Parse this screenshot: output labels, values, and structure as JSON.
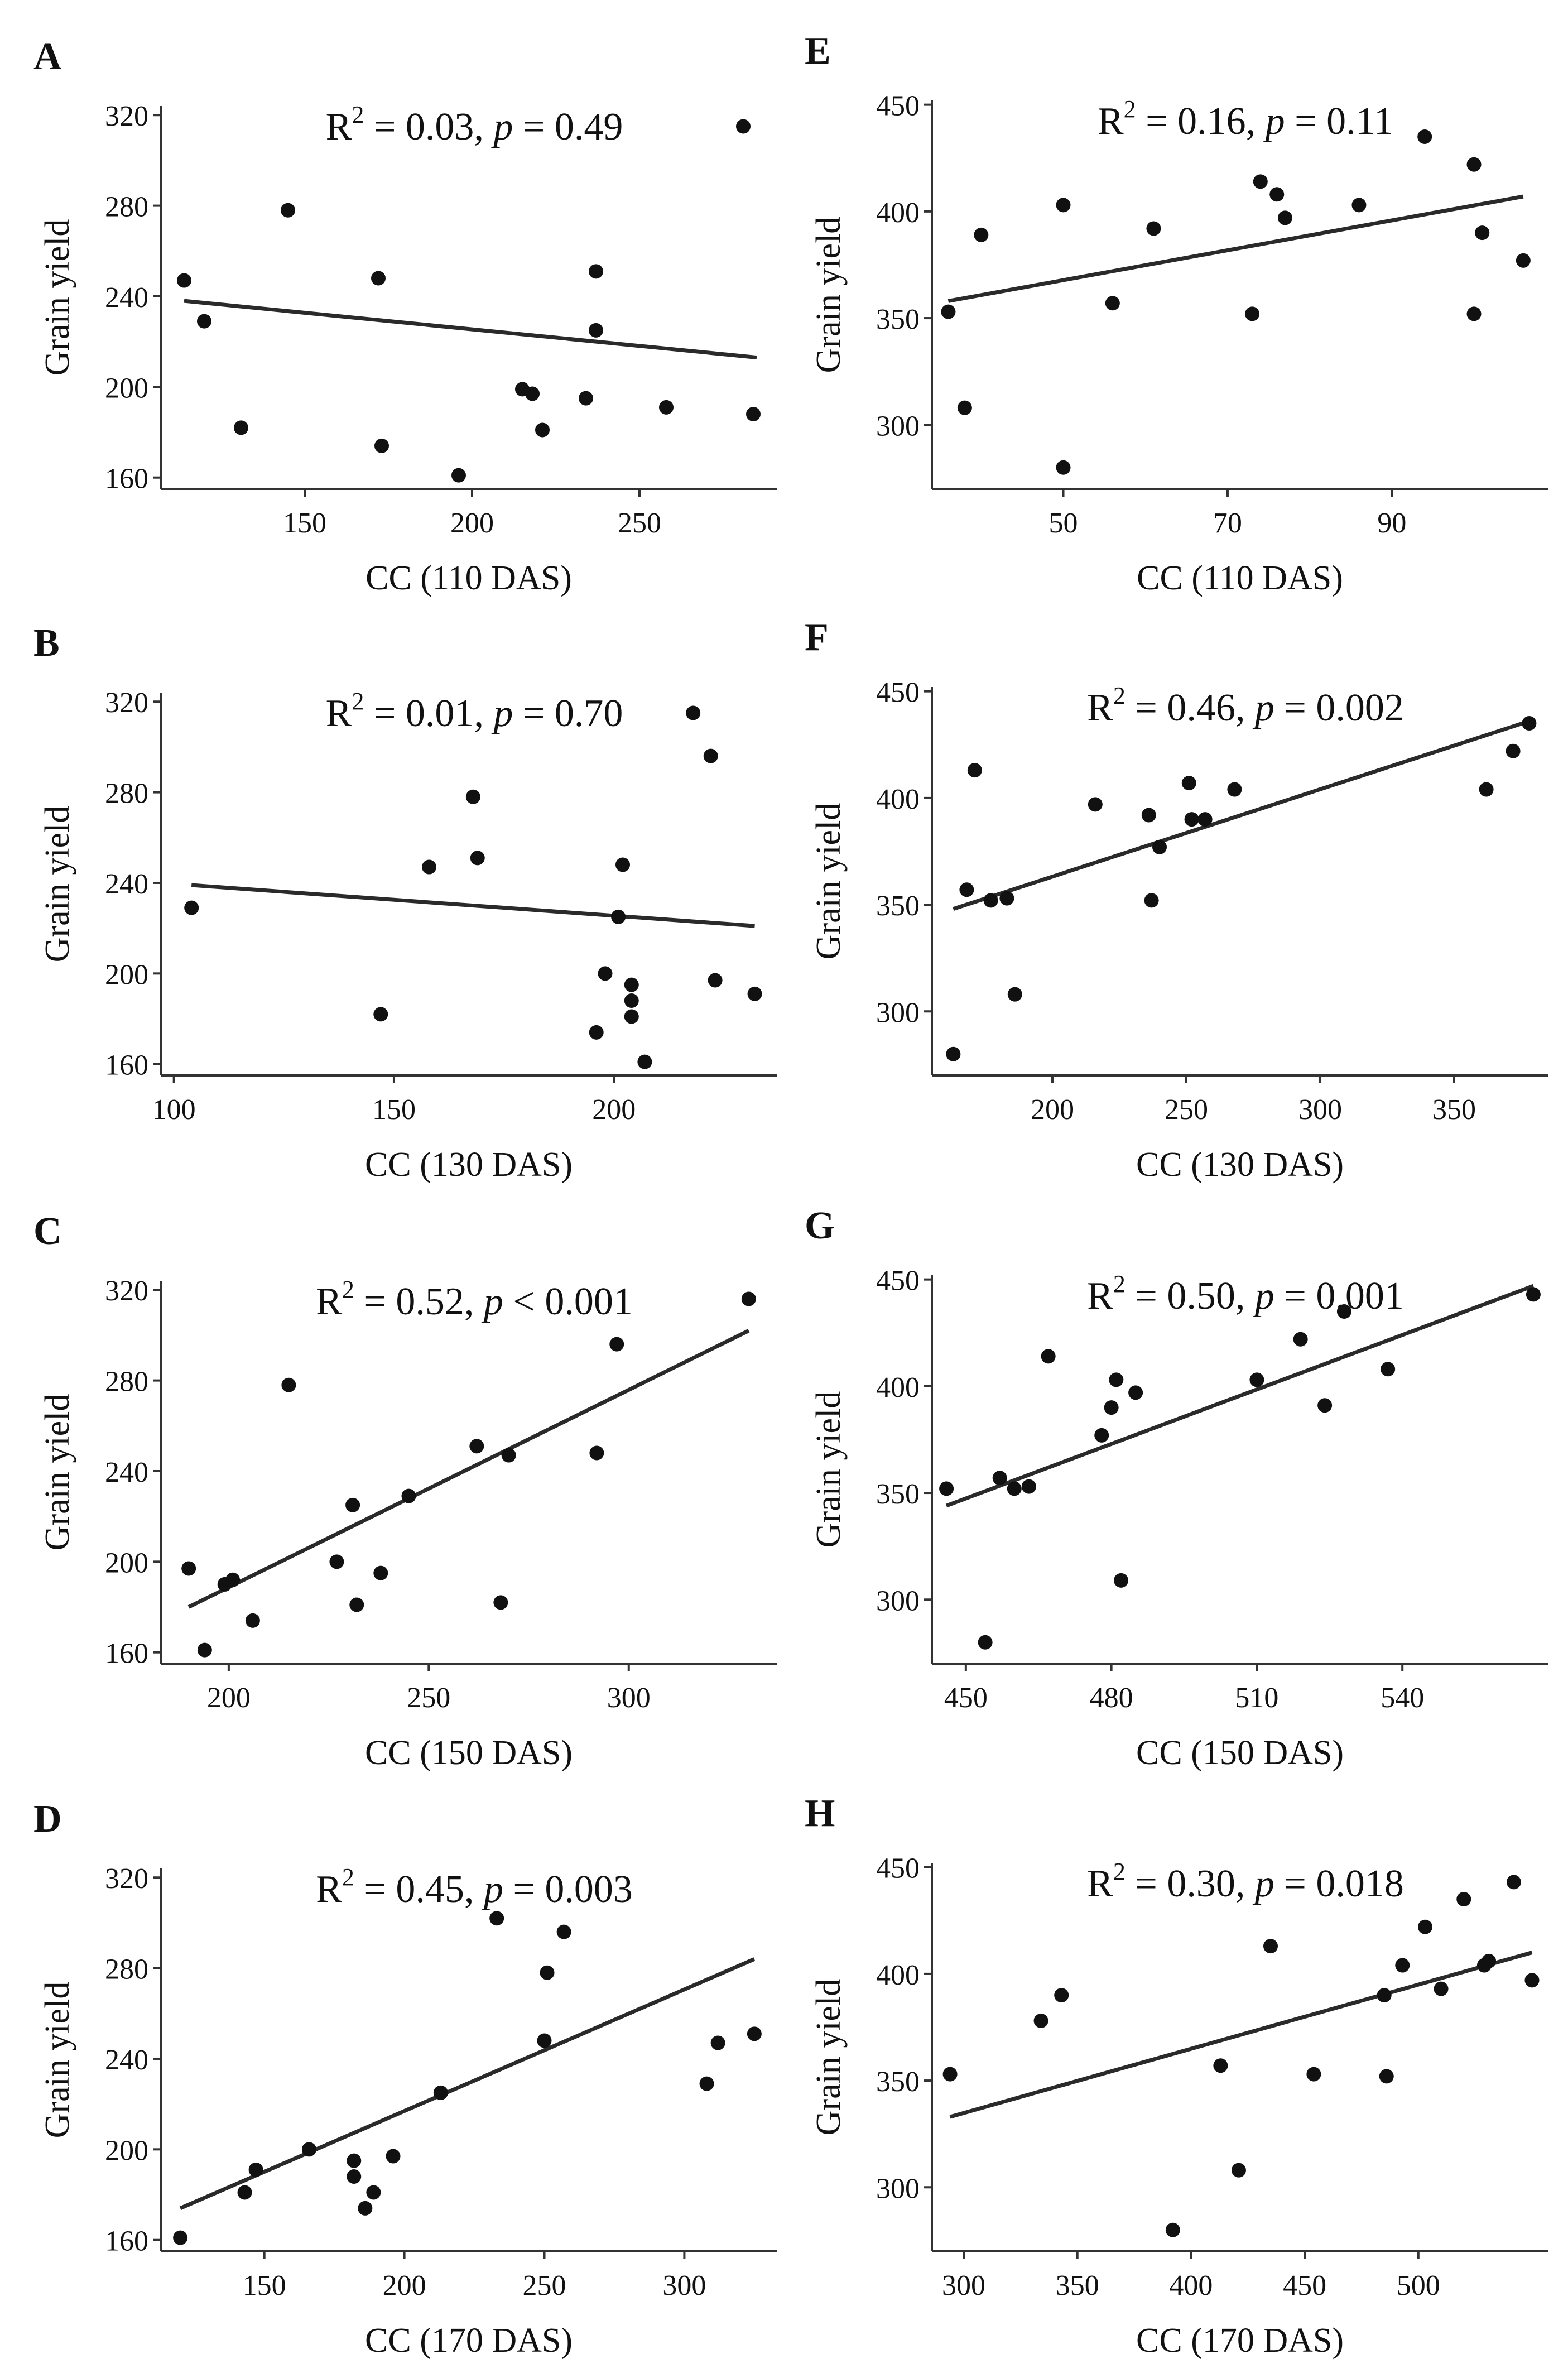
{
  "colors": {
    "ink": "#111111",
    "axis": "#333333",
    "background": "#ffffff"
  },
  "chart_data": [
    {
      "panel": "A",
      "type": "scatter",
      "annotation": {
        "r2_label": "R",
        "r2_sup": "2",
        "r2_value": " = 0.03, ",
        "p_label": "p",
        "p_rel": " = ",
        "p_value": "0.49"
      },
      "xlabel": "CC (110 DAS)",
      "ylabel": "Grain yield",
      "xlim": [
        107,
        291
      ],
      "ylim": [
        155,
        324
      ],
      "xticks": [
        150,
        200,
        250
      ],
      "yticks": [
        160,
        200,
        240,
        280,
        320
      ],
      "fit": {
        "x": [
          114,
          285
        ],
        "y": [
          238,
          213
        ]
      },
      "points": [
        [
          114,
          247
        ],
        [
          120,
          229
        ],
        [
          131,
          182
        ],
        [
          145,
          278
        ],
        [
          172,
          248
        ],
        [
          173,
          174
        ],
        [
          196,
          161
        ],
        [
          215,
          199
        ],
        [
          218,
          197
        ],
        [
          221,
          181
        ],
        [
          234,
          195
        ],
        [
          237,
          251
        ],
        [
          237,
          225
        ],
        [
          258,
          191
        ],
        [
          281,
          315
        ],
        [
          284,
          188
        ]
      ]
    },
    {
      "panel": "B",
      "type": "scatter",
      "annotation": {
        "r2_label": "R",
        "r2_sup": "2",
        "r2_value": " = 0.01, ",
        "p_label": "p",
        "p_rel": " = ",
        "p_value": "0.70"
      },
      "xlabel": "CC (130 DAS)",
      "ylabel": "Grain yield",
      "xlim": [
        97,
        237
      ],
      "ylim": [
        155,
        324
      ],
      "xticks": [
        100,
        150,
        200
      ],
      "yticks": [
        160,
        200,
        240,
        280,
        320
      ],
      "fit": {
        "x": [
          104,
          232
        ],
        "y": [
          239,
          221
        ]
      },
      "points": [
        [
          104,
          229
        ],
        [
          147,
          182
        ],
        [
          158,
          247
        ],
        [
          168,
          278
        ],
        [
          169,
          251
        ],
        [
          196,
          174
        ],
        [
          198,
          200
        ],
        [
          201,
          225
        ],
        [
          202,
          248
        ],
        [
          204,
          195
        ],
        [
          204,
          188
        ],
        [
          204,
          181
        ],
        [
          207,
          161
        ],
        [
          218,
          315
        ],
        [
          222,
          296
        ],
        [
          223,
          197
        ],
        [
          232,
          191
        ]
      ]
    },
    {
      "panel": "C",
      "type": "scatter",
      "annotation": {
        "r2_label": "R",
        "r2_sup": "2",
        "r2_value": " = 0.52, ",
        "p_label": "p",
        "p_rel": " < ",
        "p_value": "0.001"
      },
      "xlabel": "CC (150 DAS)",
      "ylabel": "Grain yield",
      "xlim": [
        183,
        337
      ],
      "ylim": [
        155,
        324
      ],
      "xticks": [
        200,
        250,
        300
      ],
      "yticks": [
        160,
        200,
        240,
        280,
        320
      ],
      "fit": {
        "x": [
          190,
          330
        ],
        "y": [
          180,
          302
        ]
      },
      "points": [
        [
          190,
          197
        ],
        [
          194,
          161
        ],
        [
          199,
          190
        ],
        [
          201,
          192
        ],
        [
          206,
          174
        ],
        [
          215,
          278
        ],
        [
          227,
          200
        ],
        [
          231,
          225
        ],
        [
          232,
          181
        ],
        [
          238,
          195
        ],
        [
          245,
          229
        ],
        [
          262,
          251
        ],
        [
          268,
          182
        ],
        [
          270,
          247
        ],
        [
          292,
          248
        ],
        [
          297,
          296
        ],
        [
          330,
          316
        ]
      ]
    },
    {
      "panel": "D",
      "type": "scatter",
      "annotation": {
        "r2_label": "R",
        "r2_sup": "2",
        "r2_value": " = 0.45, ",
        "p_label": "p",
        "p_rel": " = ",
        "p_value": "0.003"
      },
      "xlabel": "CC (170 DAS)",
      "ylabel": "Grain yield",
      "xlim": [
        113,
        333
      ],
      "ylim": [
        155,
        324
      ],
      "xticks": [
        150,
        200,
        250,
        300
      ],
      "yticks": [
        160,
        200,
        240,
        280,
        320
      ],
      "fit": {
        "x": [
          120,
          325
        ],
        "y": [
          174,
          284
        ]
      },
      "points": [
        [
          120,
          161
        ],
        [
          143,
          181
        ],
        [
          147,
          191
        ],
        [
          166,
          200
        ],
        [
          182,
          195
        ],
        [
          182,
          188
        ],
        [
          186,
          174
        ],
        [
          189,
          181
        ],
        [
          196,
          197
        ],
        [
          213,
          225
        ],
        [
          233,
          302
        ],
        [
          250,
          248
        ],
        [
          251,
          278
        ],
        [
          257,
          296
        ],
        [
          308,
          229
        ],
        [
          312,
          247
        ],
        [
          325,
          251
        ]
      ]
    },
    {
      "panel": "E",
      "type": "scatter",
      "annotation": {
        "r2_label": "R",
        "r2_sup": "2",
        "r2_value": " = 0.16, ",
        "p_label": "p",
        "p_rel": " = ",
        "p_value": "0.11"
      },
      "xlabel": "CC (110 DAS)",
      "ylabel": "Grain yield",
      "xlim": [
        34,
        109
      ],
      "ylim": [
        270,
        452
      ],
      "xticks": [
        50,
        70,
        90
      ],
      "yticks": [
        300,
        350,
        400,
        450
      ],
      "fit": {
        "x": [
          36,
          106
        ],
        "y": [
          358,
          407
        ]
      },
      "points": [
        [
          36,
          353
        ],
        [
          38,
          308
        ],
        [
          40,
          389
        ],
        [
          50,
          403
        ],
        [
          50,
          280
        ],
        [
          56,
          357
        ],
        [
          61,
          392
        ],
        [
          73,
          352
        ],
        [
          74,
          414
        ],
        [
          76,
          408
        ],
        [
          77,
          397
        ],
        [
          86,
          403
        ],
        [
          94,
          435
        ],
        [
          100,
          422
        ],
        [
          100,
          352
        ],
        [
          101,
          390
        ],
        [
          106,
          377
        ]
      ]
    },
    {
      "panel": "F",
      "type": "scatter",
      "annotation": {
        "r2_label": "R",
        "r2_sup": "2",
        "r2_value": " = 0.46, ",
        "p_label": "p",
        "p_rel": " = ",
        "p_value": "0.002"
      },
      "xlabel": "CC (130 DAS)",
      "ylabel": "Grain yield",
      "xlim": [
        155,
        385
      ],
      "ylim": [
        270,
        452
      ],
      "xticks": [
        200,
        250,
        300,
        350
      ],
      "yticks": [
        300,
        350,
        400,
        450
      ],
      "fit": {
        "x": [
          163,
          378
        ],
        "y": [
          348,
          436
        ]
      },
      "points": [
        [
          163,
          280
        ],
        [
          168,
          357
        ],
        [
          171,
          413
        ],
        [
          177,
          352
        ],
        [
          183,
          353
        ],
        [
          186,
          308
        ],
        [
          216,
          397
        ],
        [
          236,
          392
        ],
        [
          237,
          352
        ],
        [
          240,
          377
        ],
        [
          251,
          407
        ],
        [
          252,
          390
        ],
        [
          257,
          390
        ],
        [
          268,
          404
        ],
        [
          362,
          404
        ],
        [
          372,
          422
        ],
        [
          378,
          435
        ]
      ]
    },
    {
      "panel": "G",
      "type": "scatter",
      "annotation": {
        "r2_label": "R",
        "r2_sup": "2",
        "r2_value": " = 0.50, ",
        "p_label": "p",
        "p_rel": " = ",
        "p_value": "0.001"
      },
      "xlabel": "CC (150 DAS)",
      "ylabel": "Grain yield",
      "xlim": [
        443,
        570
      ],
      "ylim": [
        270,
        452
      ],
      "xticks": [
        450,
        480,
        510,
        540
      ],
      "yticks": [
        300,
        350,
        400,
        450
      ],
      "fit": {
        "x": [
          446,
          567
        ],
        "y": [
          344,
          447
        ]
      },
      "points": [
        [
          446,
          352
        ],
        [
          454,
          280
        ],
        [
          457,
          357
        ],
        [
          460,
          352
        ],
        [
          463,
          353
        ],
        [
          467,
          414
        ],
        [
          478,
          377
        ],
        [
          480,
          390
        ],
        [
          481,
          403
        ],
        [
          482,
          309
        ],
        [
          485,
          397
        ],
        [
          510,
          403
        ],
        [
          519,
          422
        ],
        [
          524,
          391
        ],
        [
          528,
          435
        ],
        [
          537,
          408
        ],
        [
          567,
          443
        ]
      ]
    },
    {
      "panel": "H",
      "type": "scatter",
      "annotation": {
        "r2_label": "R",
        "r2_sup": "2",
        "r2_value": " = 0.30, ",
        "p_label": "p",
        "p_rel": " = ",
        "p_value": "0.018"
      },
      "xlabel": "CC (170 DAS)",
      "ylabel": "Grain yield",
      "xlim": [
        286,
        557
      ],
      "ylim": [
        270,
        452
      ],
      "xticks": [
        300,
        350,
        400,
        450,
        500
      ],
      "yticks": [
        300,
        350,
        400,
        450
      ],
      "fit": {
        "x": [
          294,
          550
        ],
        "y": [
          333,
          410
        ]
      },
      "points": [
        [
          294,
          353
        ],
        [
          334,
          378
        ],
        [
          343,
          390
        ],
        [
          392,
          280
        ],
        [
          413,
          357
        ],
        [
          421,
          308
        ],
        [
          435,
          413
        ],
        [
          454,
          353
        ],
        [
          485,
          390
        ],
        [
          486,
          352
        ],
        [
          493,
          404
        ],
        [
          503,
          422
        ],
        [
          510,
          393
        ],
        [
          520,
          435
        ],
        [
          529,
          404
        ],
        [
          531,
          406
        ],
        [
          542,
          443
        ],
        [
          550,
          397
        ]
      ]
    }
  ]
}
